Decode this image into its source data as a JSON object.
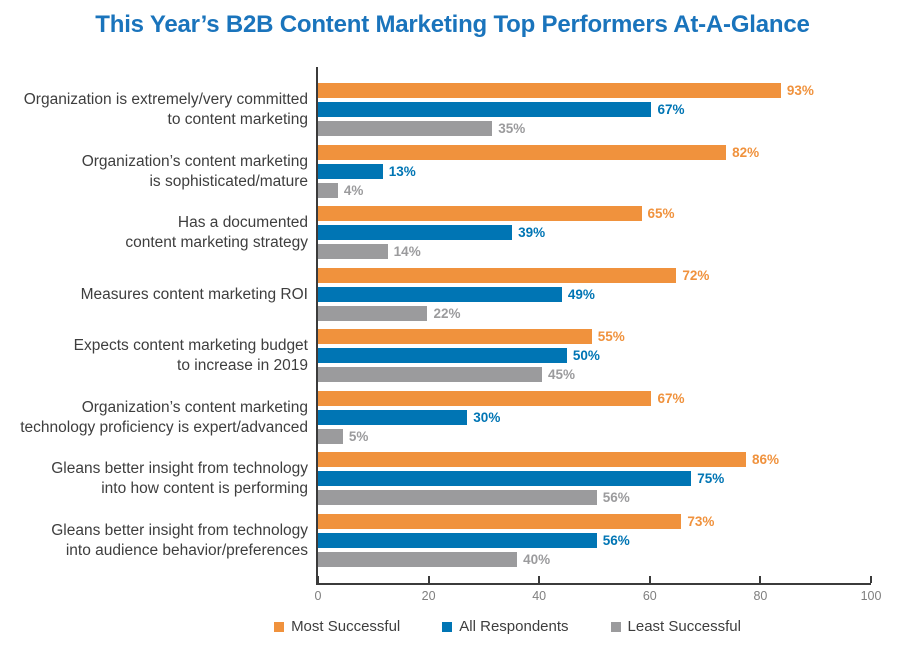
{
  "chart_data": {
    "type": "bar",
    "orientation": "horizontal",
    "title": "This Year’s B2B Content Marketing Top Performers At-A-Glance",
    "title_color": "#1A74BC",
    "categories": [
      "Organization is extremely/very committed\nto content marketing",
      "Organization’s content marketing\nis sophisticated/mature",
      "Has a documented\ncontent marketing strategy",
      "Measures content marketing ROI",
      "Expects content marketing budget\nto increase in 2019",
      "Organization’s content marketing\ntechnology proficiency is expert/advanced",
      "Gleans better insight from technology\ninto how content is performing",
      "Gleans better insight from technology\ninto audience behavior/preferences"
    ],
    "series": [
      {
        "name": "Most Successful",
        "color": "#F0923D",
        "values": [
          93,
          82,
          65,
          72,
          55,
          67,
          86,
          73
        ]
      },
      {
        "name": "All Respondents",
        "color": "#0075B4",
        "values": [
          67,
          13,
          39,
          49,
          50,
          30,
          75,
          56
        ]
      },
      {
        "name": "Least Successful",
        "color": "#9B9B9D",
        "values": [
          35,
          4,
          14,
          22,
          45,
          5,
          56,
          40
        ]
      }
    ],
    "value_suffix": "%",
    "xlim": [
      0,
      100
    ],
    "x_ticks": [
      "0",
      "20",
      "40",
      "60",
      "80",
      "100"
    ],
    "grid": false,
    "legend_position": "bottom",
    "axis_color": "#3B3B3B",
    "tick_label_color": "#7F7F7F",
    "category_label_color": "#3E3E3E"
  }
}
